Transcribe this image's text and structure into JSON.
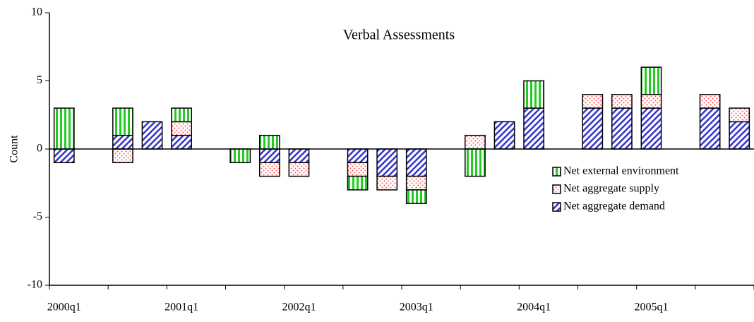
{
  "chart_data": {
    "type": "stacked_bar",
    "title": "Verbal Assessments",
    "ylabel": "Count",
    "categories": [
      "2000q1",
      null,
      null,
      null,
      "2001q1",
      null,
      null,
      null,
      "2002q1",
      null,
      null,
      null,
      "2003q1",
      null,
      null,
      null,
      "2004q1",
      null,
      null,
      null,
      "2005q1",
      null,
      null,
      null
    ],
    "series": [
      {
        "name": "Net aggregate demand",
        "color": "#3333cc",
        "pattern": "diagonal",
        "values": [
          -1,
          0,
          1,
          2,
          1,
          0,
          0,
          -1,
          -1,
          0,
          -1,
          -2,
          -2,
          0,
          0,
          2,
          3,
          0,
          3,
          3,
          3,
          0,
          3,
          2
        ]
      },
      {
        "name": "Net aggregate supply",
        "color": "#ff5555",
        "pattern": "dots",
        "values": [
          0,
          0,
          -1,
          0,
          1,
          0,
          0,
          -1,
          -1,
          0,
          -1,
          -1,
          -1,
          0,
          1,
          0,
          0,
          0,
          1,
          1,
          1,
          0,
          1,
          1
        ]
      },
      {
        "name": "Net external environment",
        "color": "#22cc22",
        "pattern": "vertical",
        "values": [
          3,
          0,
          2,
          0,
          1,
          0,
          -1,
          1,
          0,
          0,
          -1,
          0,
          -1,
          0,
          -2,
          0,
          2,
          0,
          0,
          0,
          2,
          0,
          0,
          0
        ]
      }
    ],
    "ylim": [
      -10,
      10
    ],
    "yticks": [
      -10,
      -5,
      0,
      5,
      10
    ],
    "grid": false,
    "legend": "lower right"
  }
}
